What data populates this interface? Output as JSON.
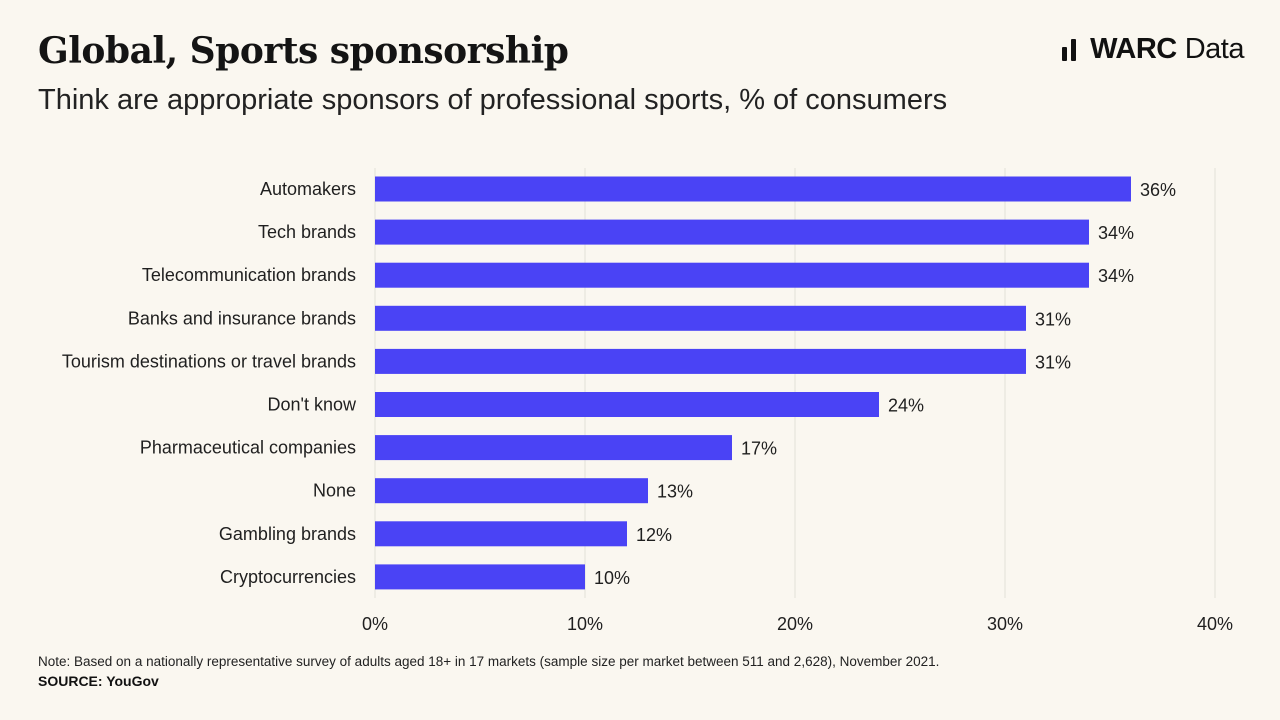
{
  "header": {
    "title": "Global, Sports sponsorship",
    "subtitle": "Think are appropriate sponsors of professional sports, % of consumers"
  },
  "logo": {
    "brand": "WARC",
    "suffix": "Data"
  },
  "footer": {
    "note": "Note: Based on a nationally representative survey of adults aged 18+ in 17 markets (sample size per market between 511 and 2,628), November 2021.",
    "source": "SOURCE: YouGov"
  },
  "colors": {
    "bar": "#4a43f5",
    "grid": "#e3e0d8",
    "background": "#faf7f0"
  },
  "chart_data": {
    "type": "bar",
    "orientation": "horizontal",
    "title": "Global, Sports sponsorship",
    "subtitle": "Think are appropriate sponsors of professional sports, % of consumers",
    "categories": [
      "Automakers",
      "Tech brands",
      "Telecommunication brands",
      "Banks and insurance brands",
      "Tourism destinations or travel brands",
      "Don't know",
      "Pharmaceutical companies",
      "None",
      "Gambling brands",
      "Cryptocurrencies"
    ],
    "values": [
      36,
      34,
      34,
      31,
      31,
      24,
      17,
      13,
      12,
      10
    ],
    "value_labels": [
      "36%",
      "34%",
      "34%",
      "31%",
      "31%",
      "24%",
      "17%",
      "13%",
      "12%",
      "10%"
    ],
    "xlim": [
      0,
      40
    ],
    "xticks": [
      0,
      10,
      20,
      30,
      40
    ],
    "xtick_labels": [
      "0%",
      "10%",
      "20%",
      "30%",
      "40%"
    ],
    "grid": "vertical"
  }
}
